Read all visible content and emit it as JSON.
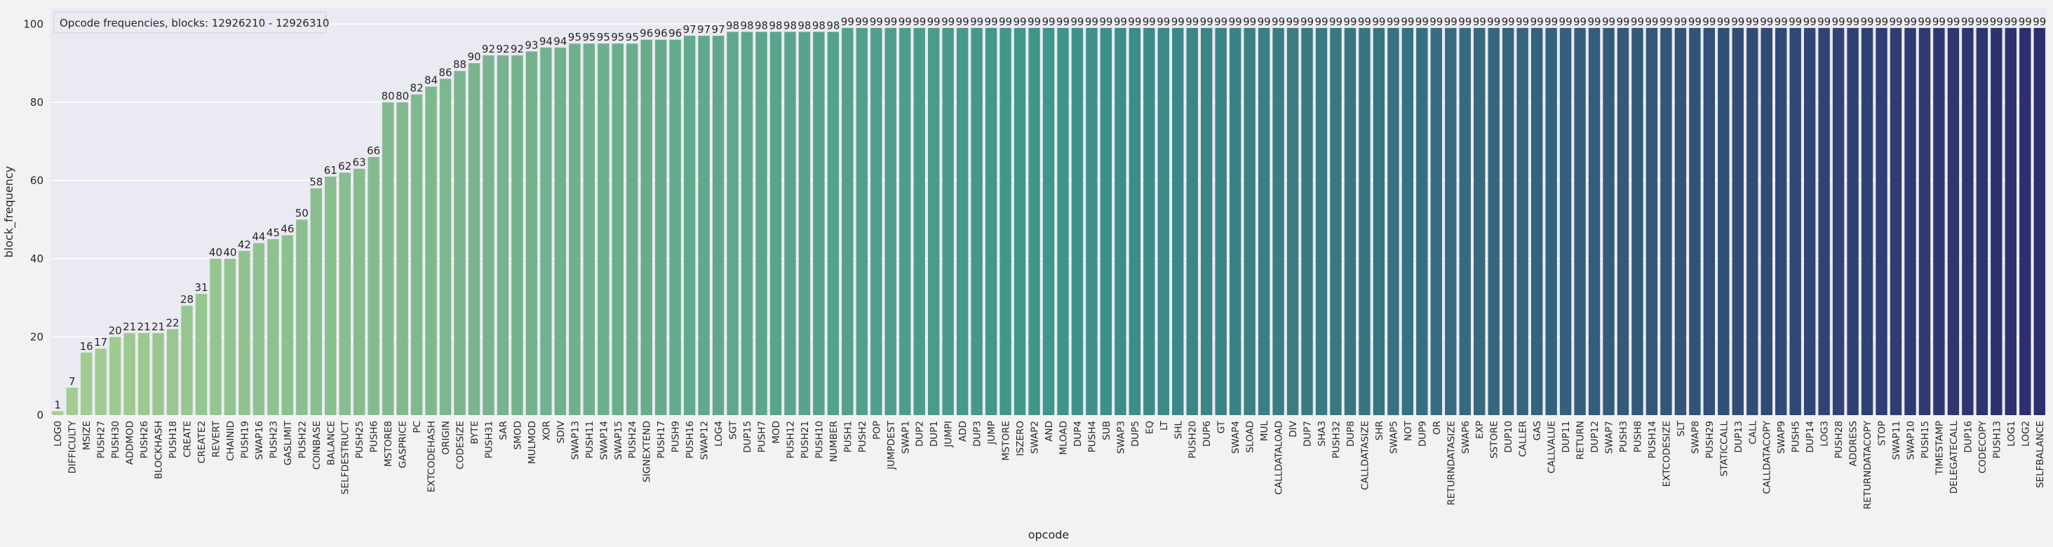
{
  "chart_data": {
    "type": "bar",
    "title": "Opcode frequencies, blocks: 12926210 - 12926310",
    "x_label": "opcode",
    "y_label": "block_frequency",
    "categories": [
      "LOG0",
      "DIFFICULTY",
      "MSIZE",
      "PUSH27",
      "PUSH30",
      "ADDMOD",
      "PUSH26",
      "BLOCKHASH",
      "PUSH18",
      "CREATE",
      "CREATE2",
      "REVERT",
      "CHAINID",
      "PUSH19",
      "SWAP16",
      "PUSH23",
      "GASLIMIT",
      "PUSH22",
      "COINBASE",
      "BALANCE",
      "SELFDESTRUCT",
      "PUSH25",
      "PUSH6",
      "MSTORE8",
      "GASPRICE",
      "PC",
      "EXTCODEHASH",
      "ORIGIN",
      "CODESIZE",
      "BYTE",
      "PUSH31",
      "SAR",
      "SMOD",
      "MULMOD",
      "XOR",
      "SDIV",
      "SWAP13",
      "PUSH11",
      "SWAP14",
      "SWAP15",
      "PUSH24",
      "SIGNEXTEND",
      "PUSH17",
      "PUSH9",
      "PUSH16",
      "SWAP12",
      "LOG4",
      "SGT",
      "DUP15",
      "PUSH7",
      "MOD",
      "PUSH12",
      "PUSH21",
      "PUSH10",
      "NUMBER",
      "PUSH1",
      "PUSH2",
      "POP",
      "JUMPDEST",
      "SWAP1",
      "DUP2",
      "DUP1",
      "JUMPI",
      "ADD",
      "DUP3",
      "JUMP",
      "MSTORE",
      "ISZERO",
      "SWAP2",
      "AND",
      "MLOAD",
      "DUP4",
      "PUSH4",
      "SUB",
      "SWAP3",
      "DUP5",
      "EQ",
      "LT",
      "SHL",
      "PUSH20",
      "DUP6",
      "GT",
      "SWAP4",
      "SLOAD",
      "MUL",
      "CALLDATALOAD",
      "DIV",
      "DUP7",
      "SHA3",
      "PUSH32",
      "DUP8",
      "CALLDATASIZE",
      "SHR",
      "SWAP5",
      "NOT",
      "DUP9",
      "OR",
      "RETURNDATASIZE",
      "SWAP6",
      "EXP",
      "SSTORE",
      "DUP10",
      "CALLER",
      "GAS",
      "CALLVALUE",
      "DUP11",
      "RETURN",
      "DUP12",
      "SWAP7",
      "PUSH3",
      "PUSH8",
      "PUSH14",
      "EXTCODESIZE",
      "SLT",
      "SWAP8",
      "PUSH29",
      "STATICCALL",
      "DUP13",
      "CALL",
      "CALLDATACOPY",
      "SWAP9",
      "PUSH5",
      "DUP14",
      "LOG3",
      "PUSH28",
      "ADDRESS",
      "RETURNDATACOPY",
      "STOP",
      "SWAP11",
      "SWAP10",
      "PUSH15",
      "TIMESTAMP",
      "DELEGATECALL",
      "DUP16",
      "CODECOPY",
      "PUSH13",
      "LOG1",
      "LOG2",
      "SELFBALANCE"
    ],
    "values": [
      1,
      7,
      16,
      17,
      20,
      21,
      21,
      21,
      22,
      28,
      31,
      40,
      40,
      42,
      44,
      45,
      46,
      50,
      58,
      61,
      62,
      63,
      66,
      80,
      80,
      82,
      84,
      86,
      88,
      90,
      92,
      92,
      92,
      93,
      94,
      94,
      95,
      95,
      95,
      95,
      95,
      96,
      96,
      96,
      97,
      97,
      97,
      98,
      98,
      98,
      98,
      98,
      98,
      98,
      98,
      99,
      99,
      99,
      99,
      99,
      99,
      99,
      99,
      99,
      99,
      99,
      99,
      99,
      99,
      99,
      99,
      99,
      99,
      99,
      99,
      99,
      99,
      99,
      99,
      99,
      99,
      99,
      99,
      99,
      99,
      99,
      99,
      99,
      99,
      99,
      99,
      99,
      99,
      99,
      99,
      99,
      99,
      99,
      99,
      99,
      99,
      99,
      99,
      99,
      99,
      99,
      99,
      99,
      99,
      99,
      99,
      99,
      99,
      99,
      99,
      99,
      99,
      99,
      99,
      99,
      99,
      99,
      99,
      99,
      99,
      99,
      99,
      99,
      99,
      99,
      99,
      99,
      99,
      99,
      99,
      99,
      99,
      99,
      99
    ],
    "palette": [
      "#a5cd90",
      "#3e958b",
      "#2c2e6e"
    ],
    "ylim": [
      0,
      104
    ],
    "yticks": [
      0,
      20,
      40,
      60,
      80,
      100
    ],
    "grid": true
  }
}
